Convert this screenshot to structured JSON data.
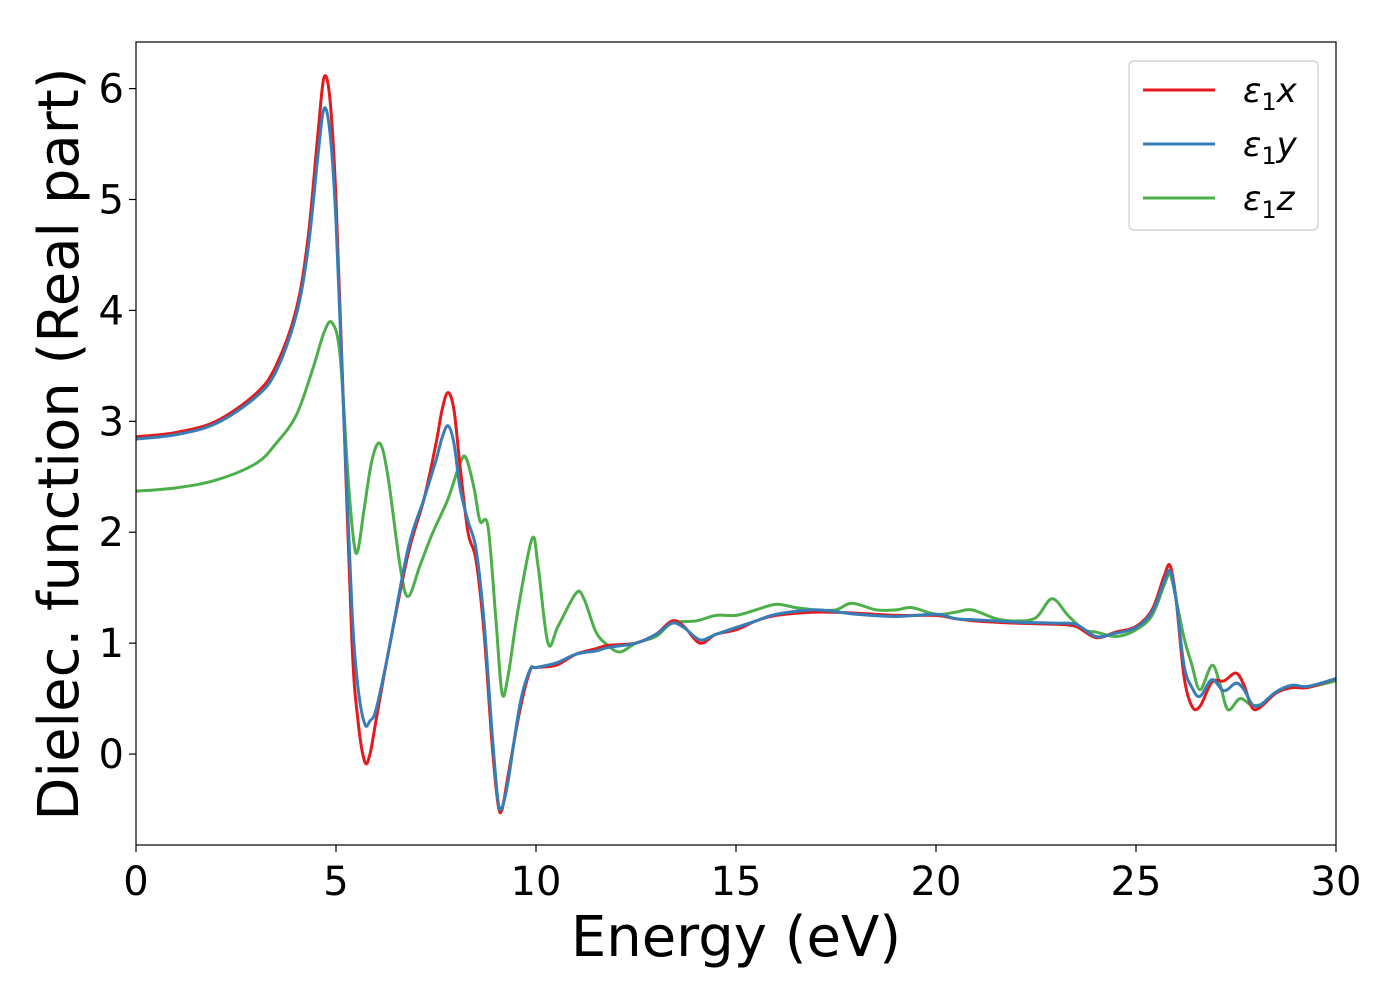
{
  "chart_data": {
    "type": "line",
    "xlabel": "Energy (eV)",
    "ylabel": "Dielec. function (Real part)",
    "xlim": [
      0,
      30
    ],
    "ylim": [
      -0.82,
      6.42
    ],
    "xticks": [
      0,
      5,
      10,
      15,
      20,
      25,
      30
    ],
    "yticks": [
      0,
      1,
      2,
      3,
      4,
      5,
      6
    ],
    "grid": false,
    "legend_position": "top-right",
    "series": [
      {
        "name": "ε1x",
        "legend_symbol": "ε",
        "legend_sub": "1",
        "legend_var": "x",
        "color": "#e41a1c",
        "points": [
          [
            0,
            2.86
          ],
          [
            1,
            2.9
          ],
          [
            2,
            3.0
          ],
          [
            3,
            3.25
          ],
          [
            3.5,
            3.5
          ],
          [
            4.0,
            4.0
          ],
          [
            4.3,
            4.65
          ],
          [
            4.55,
            5.6
          ],
          [
            4.7,
            6.1
          ],
          [
            4.85,
            5.9
          ],
          [
            5.0,
            5.0
          ],
          [
            5.2,
            3.0
          ],
          [
            5.4,
            1.0
          ],
          [
            5.55,
            0.3
          ],
          [
            5.72,
            -0.07
          ],
          [
            5.85,
            0.0
          ],
          [
            6.0,
            0.3
          ],
          [
            6.3,
            0.9
          ],
          [
            6.8,
            1.8
          ],
          [
            7.2,
            2.3
          ],
          [
            7.5,
            2.8
          ],
          [
            7.65,
            3.1
          ],
          [
            7.8,
            3.26
          ],
          [
            7.95,
            3.1
          ],
          [
            8.1,
            2.6
          ],
          [
            8.3,
            2.0
          ],
          [
            8.5,
            1.75
          ],
          [
            8.7,
            1.1
          ],
          [
            8.9,
            0.1
          ],
          [
            9.05,
            -0.45
          ],
          [
            9.15,
            -0.5
          ],
          [
            9.3,
            -0.2
          ],
          [
            9.6,
            0.4
          ],
          [
            9.85,
            0.75
          ],
          [
            10.0,
            0.78
          ],
          [
            10.5,
            0.8
          ],
          [
            11.0,
            0.9
          ],
          [
            11.5,
            0.95
          ],
          [
            11.8,
            0.98
          ],
          [
            12.5,
            1.0
          ],
          [
            13.0,
            1.08
          ],
          [
            13.4,
            1.2
          ],
          [
            13.7,
            1.15
          ],
          [
            14.1,
            1.0
          ],
          [
            14.5,
            1.08
          ],
          [
            15.0,
            1.12
          ],
          [
            15.5,
            1.2
          ],
          [
            16.0,
            1.25
          ],
          [
            17.0,
            1.28
          ],
          [
            18.0,
            1.27
          ],
          [
            19.0,
            1.25
          ],
          [
            20.0,
            1.25
          ],
          [
            20.5,
            1.22
          ],
          [
            21.0,
            1.2
          ],
          [
            22.0,
            1.18
          ],
          [
            23.0,
            1.17
          ],
          [
            23.5,
            1.15
          ],
          [
            24.0,
            1.05
          ],
          [
            24.5,
            1.1
          ],
          [
            25.0,
            1.15
          ],
          [
            25.4,
            1.3
          ],
          [
            25.7,
            1.6
          ],
          [
            25.85,
            1.7
          ],
          [
            26.0,
            1.4
          ],
          [
            26.2,
            0.7
          ],
          [
            26.4,
            0.43
          ],
          [
            26.6,
            0.43
          ],
          [
            26.9,
            0.65
          ],
          [
            27.2,
            0.66
          ],
          [
            27.5,
            0.73
          ],
          [
            27.7,
            0.62
          ],
          [
            27.9,
            0.42
          ],
          [
            28.1,
            0.42
          ],
          [
            28.5,
            0.55
          ],
          [
            28.9,
            0.6
          ],
          [
            29.3,
            0.6
          ],
          [
            30.0,
            0.68
          ]
        ]
      },
      {
        "name": "ε1y",
        "legend_symbol": "ε",
        "legend_sub": "1",
        "legend_var": "y",
        "color": "#377eb8",
        "points": [
          [
            0,
            2.84
          ],
          [
            1,
            2.88
          ],
          [
            2,
            2.98
          ],
          [
            3,
            3.22
          ],
          [
            3.5,
            3.45
          ],
          [
            4.0,
            3.95
          ],
          [
            4.3,
            4.55
          ],
          [
            4.55,
            5.4
          ],
          [
            4.7,
            5.82
          ],
          [
            4.85,
            5.6
          ],
          [
            5.0,
            4.8
          ],
          [
            5.2,
            3.0
          ],
          [
            5.4,
            1.3
          ],
          [
            5.55,
            0.6
          ],
          [
            5.72,
            0.27
          ],
          [
            5.85,
            0.3
          ],
          [
            6.0,
            0.4
          ],
          [
            6.3,
            0.9
          ],
          [
            6.8,
            1.85
          ],
          [
            7.2,
            2.3
          ],
          [
            7.5,
            2.65
          ],
          [
            7.65,
            2.85
          ],
          [
            7.8,
            2.96
          ],
          [
            7.95,
            2.8
          ],
          [
            8.1,
            2.4
          ],
          [
            8.3,
            2.1
          ],
          [
            8.5,
            1.85
          ],
          [
            8.7,
            1.2
          ],
          [
            8.9,
            0.2
          ],
          [
            9.05,
            -0.42
          ],
          [
            9.15,
            -0.48
          ],
          [
            9.3,
            -0.25
          ],
          [
            9.6,
            0.45
          ],
          [
            9.85,
            0.76
          ],
          [
            10.0,
            0.78
          ],
          [
            10.5,
            0.82
          ],
          [
            11.0,
            0.9
          ],
          [
            11.5,
            0.93
          ],
          [
            11.8,
            0.96
          ],
          [
            12.5,
            1.0
          ],
          [
            13.0,
            1.08
          ],
          [
            13.4,
            1.18
          ],
          [
            13.7,
            1.14
          ],
          [
            14.1,
            1.03
          ],
          [
            14.5,
            1.08
          ],
          [
            15.0,
            1.14
          ],
          [
            15.5,
            1.2
          ],
          [
            16.0,
            1.26
          ],
          [
            17.0,
            1.3
          ],
          [
            18.0,
            1.26
          ],
          [
            19.0,
            1.24
          ],
          [
            20.0,
            1.26
          ],
          [
            20.5,
            1.22
          ],
          [
            21.0,
            1.21
          ],
          [
            22.0,
            1.19
          ],
          [
            23.0,
            1.18
          ],
          [
            23.5,
            1.17
          ],
          [
            24.0,
            1.06
          ],
          [
            24.5,
            1.09
          ],
          [
            25.0,
            1.14
          ],
          [
            25.4,
            1.28
          ],
          [
            25.7,
            1.55
          ],
          [
            25.85,
            1.65
          ],
          [
            26.0,
            1.4
          ],
          [
            26.2,
            0.8
          ],
          [
            26.4,
            0.6
          ],
          [
            26.6,
            0.52
          ],
          [
            26.9,
            0.67
          ],
          [
            27.2,
            0.57
          ],
          [
            27.5,
            0.64
          ],
          [
            27.7,
            0.58
          ],
          [
            27.9,
            0.45
          ],
          [
            28.1,
            0.44
          ],
          [
            28.5,
            0.56
          ],
          [
            28.9,
            0.62
          ],
          [
            29.3,
            0.61
          ],
          [
            30.0,
            0.68
          ]
        ]
      },
      {
        "name": "ε1z",
        "legend_symbol": "ε",
        "legend_sub": "1",
        "legend_var": "z",
        "color": "#4daf4a",
        "points": [
          [
            0,
            2.37
          ],
          [
            1,
            2.4
          ],
          [
            2,
            2.47
          ],
          [
            3,
            2.62
          ],
          [
            3.5,
            2.8
          ],
          [
            4.0,
            3.05
          ],
          [
            4.4,
            3.45
          ],
          [
            4.7,
            3.8
          ],
          [
            4.9,
            3.89
          ],
          [
            5.1,
            3.6
          ],
          [
            5.3,
            2.5
          ],
          [
            5.45,
            1.9
          ],
          [
            5.55,
            1.84
          ],
          [
            5.7,
            2.2
          ],
          [
            5.9,
            2.65
          ],
          [
            6.1,
            2.8
          ],
          [
            6.3,
            2.5
          ],
          [
            6.6,
            1.7
          ],
          [
            6.8,
            1.42
          ],
          [
            7.1,
            1.7
          ],
          [
            7.4,
            1.98
          ],
          [
            7.8,
            2.3
          ],
          [
            8.1,
            2.62
          ],
          [
            8.25,
            2.67
          ],
          [
            8.45,
            2.4
          ],
          [
            8.6,
            2.1
          ],
          [
            8.8,
            2.05
          ],
          [
            9.0,
            1.2
          ],
          [
            9.15,
            0.55
          ],
          [
            9.3,
            0.7
          ],
          [
            9.55,
            1.3
          ],
          [
            9.9,
            1.94
          ],
          [
            10.05,
            1.7
          ],
          [
            10.3,
            1.0
          ],
          [
            10.55,
            1.15
          ],
          [
            11.0,
            1.45
          ],
          [
            11.2,
            1.4
          ],
          [
            11.5,
            1.1
          ],
          [
            11.8,
            0.98
          ],
          [
            12.1,
            0.92
          ],
          [
            12.5,
            1.0
          ],
          [
            13.0,
            1.06
          ],
          [
            13.4,
            1.18
          ],
          [
            14.0,
            1.2
          ],
          [
            14.5,
            1.25
          ],
          [
            15.0,
            1.25
          ],
          [
            15.5,
            1.3
          ],
          [
            16.0,
            1.35
          ],
          [
            16.5,
            1.32
          ],
          [
            17.0,
            1.3
          ],
          [
            17.5,
            1.3
          ],
          [
            17.9,
            1.36
          ],
          [
            18.5,
            1.3
          ],
          [
            19.0,
            1.3
          ],
          [
            19.4,
            1.32
          ],
          [
            20.0,
            1.26
          ],
          [
            20.5,
            1.28
          ],
          [
            20.9,
            1.3
          ],
          [
            21.5,
            1.22
          ],
          [
            22.0,
            1.2
          ],
          [
            22.5,
            1.23
          ],
          [
            22.9,
            1.4
          ],
          [
            23.3,
            1.25
          ],
          [
            23.7,
            1.12
          ],
          [
            24.0,
            1.1
          ],
          [
            24.5,
            1.06
          ],
          [
            25.0,
            1.12
          ],
          [
            25.4,
            1.25
          ],
          [
            25.7,
            1.52
          ],
          [
            25.85,
            1.62
          ],
          [
            26.0,
            1.4
          ],
          [
            26.2,
            1.05
          ],
          [
            26.4,
            0.8
          ],
          [
            26.6,
            0.58
          ],
          [
            26.9,
            0.8
          ],
          [
            27.1,
            0.63
          ],
          [
            27.3,
            0.4
          ],
          [
            27.6,
            0.5
          ],
          [
            27.9,
            0.44
          ],
          [
            28.2,
            0.46
          ],
          [
            28.6,
            0.58
          ],
          [
            29.0,
            0.6
          ],
          [
            29.4,
            0.61
          ],
          [
            30.0,
            0.66
          ]
        ]
      }
    ]
  }
}
